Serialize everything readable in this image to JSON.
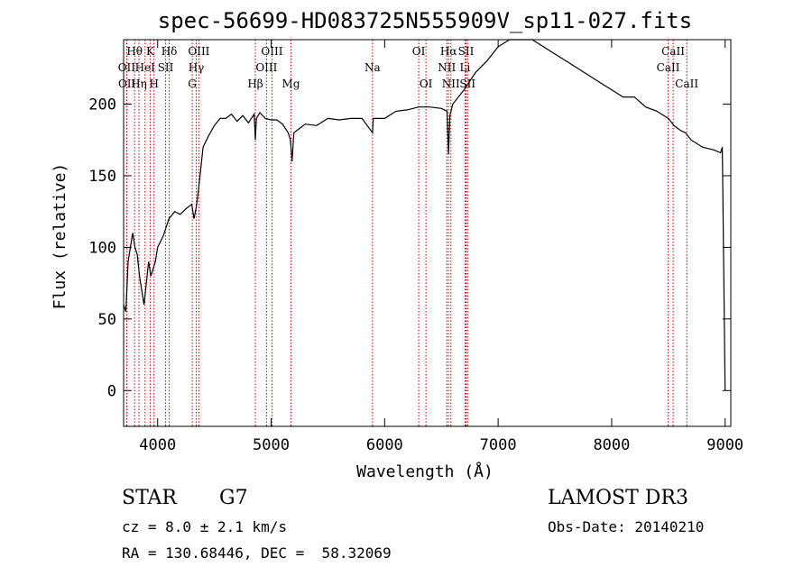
{
  "chart_data": {
    "type": "line",
    "title": "spec-56699-HD083725N555909V_sp11-027.fits",
    "xlabel": "Wavelength (Å)",
    "ylabel": "Flux (relative)",
    "xlim": [
      3700,
      9050
    ],
    "ylim": [
      -25,
      245
    ],
    "xticks": [
      4000,
      5000,
      6000,
      7000,
      8000,
      9000
    ],
    "yticks": [
      0,
      50,
      100,
      150,
      200
    ],
    "grid": false,
    "series": [
      {
        "name": "spectrum",
        "color": "#000000",
        "x": [
          3700,
          3720,
          3740,
          3760,
          3780,
          3800,
          3820,
          3840,
          3860,
          3880,
          3900,
          3920,
          3940,
          3960,
          3980,
          4000,
          4050,
          4100,
          4150,
          4200,
          4250,
          4300,
          4320,
          4340,
          4360,
          4400,
          4450,
          4500,
          4550,
          4600,
          4650,
          4700,
          4750,
          4800,
          4850,
          4861,
          4870,
          4900,
          4950,
          5000,
          5050,
          5100,
          5150,
          5170,
          5184,
          5200,
          5250,
          5300,
          5400,
          5500,
          5600,
          5700,
          5800,
          5893,
          5900,
          6000,
          6100,
          6200,
          6300,
          6400,
          6500,
          6550,
          6563,
          6575,
          6600,
          6700,
          6800,
          6900,
          7000,
          7100,
          7200,
          7300,
          7400,
          7500,
          7600,
          7700,
          7800,
          7900,
          8000,
          8100,
          8200,
          8300,
          8400,
          8500,
          8550,
          8600,
          8650,
          8700,
          8800,
          8900,
          8960,
          8975,
          9000
        ],
        "y": [
          60,
          55,
          90,
          100,
          110,
          100,
          95,
          80,
          70,
          60,
          75,
          90,
          80,
          85,
          90,
          100,
          108,
          120,
          125,
          123,
          127,
          130,
          120,
          128,
          140,
          170,
          178,
          185,
          190,
          190,
          193,
          188,
          192,
          187,
          193,
          175,
          190,
          194,
          190,
          189,
          189,
          186,
          180,
          175,
          160,
          180,
          183,
          186,
          185,
          190,
          189,
          190,
          190,
          180,
          190,
          190,
          195,
          196,
          198,
          198,
          197,
          195,
          165,
          192,
          200,
          210,
          222,
          230,
          240,
          245,
          248,
          245,
          240,
          235,
          230,
          225,
          220,
          215,
          210,
          205,
          205,
          198,
          195,
          190,
          185,
          182,
          180,
          175,
          170,
          168,
          166,
          170,
          0
        ]
      }
    ],
    "line_labels": [
      {
        "text": "Hθ",
        "wl": 3797,
        "row": 0
      },
      {
        "text": "K",
        "wl": 3934,
        "row": 0
      },
      {
        "text": "Hδ",
        "wl": 4102,
        "row": 0
      },
      {
        "text": "OIII",
        "wl": 4363,
        "row": 0
      },
      {
        "text": "OIII",
        "wl": 5007,
        "row": 0
      },
      {
        "text": "OI",
        "wl": 6300,
        "row": 0
      },
      {
        "text": "Hα",
        "wl": 6563,
        "row": 0
      },
      {
        "text": "SII",
        "wl": 6717,
        "row": 0
      },
      {
        "text": "CaII",
        "wl": 8542,
        "row": 0
      },
      {
        "text": "OII",
        "wl": 3727,
        "row": 1
      },
      {
        "text": "HeI",
        "wl": 3889,
        "row": 1
      },
      {
        "text": "SII",
        "wl": 4070,
        "row": 1
      },
      {
        "text": "Hγ",
        "wl": 4340,
        "row": 1
      },
      {
        "text": "OIII",
        "wl": 4959,
        "row": 1
      },
      {
        "text": "Na",
        "wl": 5893,
        "row": 1
      },
      {
        "text": "NII",
        "wl": 6548,
        "row": 1
      },
      {
        "text": "Li",
        "wl": 6708,
        "row": 1
      },
      {
        "text": "CaII",
        "wl": 8498,
        "row": 1
      },
      {
        "text": "OII",
        "wl": 3729,
        "row": 2
      },
      {
        "text": "Hη",
        "wl": 3835,
        "row": 2
      },
      {
        "text": "H",
        "wl": 3968,
        "row": 2
      },
      {
        "text": "G",
        "wl": 4305,
        "row": 2
      },
      {
        "text": "Hβ",
        "wl": 4861,
        "row": 2
      },
      {
        "text": "Mg",
        "wl": 5175,
        "row": 2
      },
      {
        "text": "OI",
        "wl": 6364,
        "row": 2
      },
      {
        "text": "NII",
        "wl": 6584,
        "row": 2
      },
      {
        "text": "SII",
        "wl": 6731,
        "row": 2
      },
      {
        "text": "CaII",
        "wl": 8662,
        "row": 2
      }
    ]
  },
  "info": {
    "class_label": "STAR",
    "subclass": "G7",
    "survey": "LAMOST DR3",
    "cz": "cz = 8.0 ± 2.1 km/s",
    "obs_date": "Obs-Date: 20140210",
    "coords": "RA = 130.68446, DEC =  58.32069"
  }
}
